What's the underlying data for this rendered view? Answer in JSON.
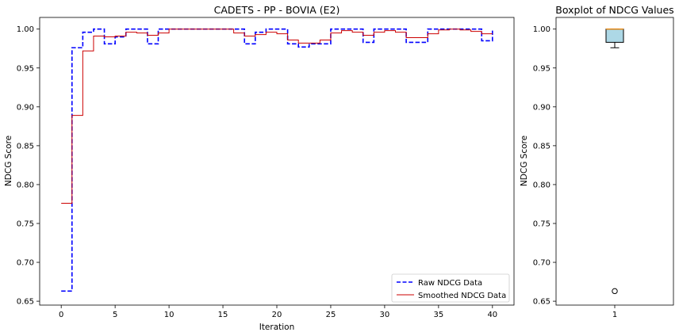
{
  "chart_data": [
    {
      "type": "line",
      "step": true,
      "title": "CADETS - PP - BOVIA (E2)",
      "xlabel": "Iteration",
      "ylabel": "NDCG Score",
      "xlim": [
        -2,
        42
      ],
      "ylim": [
        0.645,
        1.015
      ],
      "xticks": [
        0,
        5,
        10,
        15,
        20,
        25,
        30,
        35,
        40
      ],
      "yticks": [
        0.65,
        0.7,
        0.75,
        0.8,
        0.85,
        0.9,
        0.95,
        1.0
      ],
      "grid": false,
      "legend_position": "bottom-right",
      "x": [
        0,
        1,
        2,
        3,
        4,
        5,
        6,
        7,
        8,
        9,
        10,
        11,
        12,
        13,
        14,
        15,
        16,
        17,
        18,
        19,
        20,
        21,
        22,
        23,
        24,
        25,
        26,
        27,
        28,
        29,
        30,
        31,
        32,
        33,
        34,
        35,
        36,
        37,
        38,
        39,
        40
      ],
      "series": [
        {
          "name": "Raw NDCG Data",
          "color": "#0000ff",
          "style": "dashed",
          "values": [
            0.663,
            0.976,
            0.996,
            1.0,
            0.981,
            0.99,
            1.0,
            1.0,
            0.981,
            1.0,
            1.0,
            1.0,
            1.0,
            1.0,
            1.0,
            1.0,
            1.0,
            0.981,
            0.996,
            1.0,
            1.0,
            0.981,
            0.977,
            0.981,
            0.981,
            1.0,
            1.0,
            1.0,
            0.983,
            1.0,
            1.0,
            1.0,
            0.983,
            0.983,
            1.0,
            1.0,
            1.0,
            1.0,
            1.0,
            0.985,
            0.998
          ]
        },
        {
          "name": "Smoothed NDCG Data",
          "color": "#cc0000",
          "style": "solid",
          "values": [
            0.776,
            0.889,
            0.972,
            0.991,
            0.99,
            0.991,
            0.996,
            0.995,
            0.992,
            0.995,
            1.0,
            1.0,
            1.0,
            1.0,
            1.0,
            1.0,
            0.995,
            0.991,
            0.993,
            0.996,
            0.994,
            0.986,
            0.982,
            0.982,
            0.986,
            0.995,
            0.998,
            0.996,
            0.992,
            0.996,
            0.998,
            0.996,
            0.989,
            0.989,
            0.994,
            0.999,
            1.0,
            0.999,
            0.997,
            0.994,
            0.994
          ]
        }
      ]
    },
    {
      "type": "box",
      "title": "Boxplot of NDCG Values",
      "ylabel": "NDCG Score",
      "ylim": [
        0.645,
        1.015
      ],
      "xticks": [
        1
      ],
      "yticks": [
        0.65,
        0.7,
        0.75,
        0.8,
        0.85,
        0.9,
        0.95,
        1.0
      ],
      "box": {
        "whisker_low": 0.976,
        "q1": 0.983,
        "median": 1.0,
        "q3": 1.0,
        "whisker_high": 1.0,
        "outliers": [
          0.663
        ],
        "fill_color": "#add8e6",
        "median_color": "#ff8c00"
      }
    }
  ]
}
